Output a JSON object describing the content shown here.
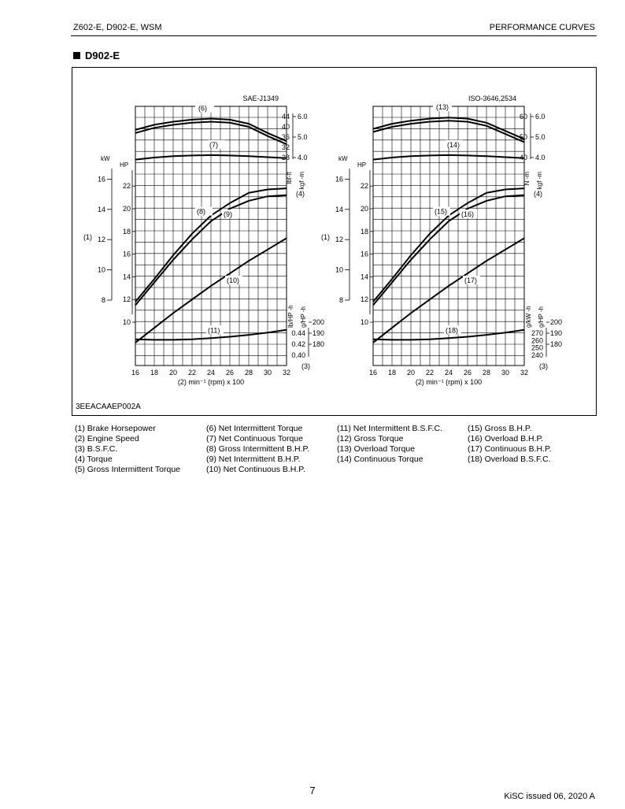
{
  "header": {
    "left": "Z602-E, D902-E, WSM",
    "right": "PERFORMANCE CURVES"
  },
  "section_title": "D902-E",
  "figure_code": "3EEACAAEP002A",
  "legend": [
    [
      "(1)  Brake Horsepower",
      "(2)  Engine Speed",
      "(3)  B.S.F.C.",
      "(4)  Torque",
      "(5)  Gross Intermittent Torque"
    ],
    [
      "(6)  Net Intermittent Torque",
      "(7)  Net Continuous Torque",
      "(8)  Gross Intermittent B.H.P.",
      "(9)  Net Intermittent B.H.P.",
      "(10) Net Continuous B.H.P."
    ],
    [
      "(11) Net Intermittent B.S.F.C.",
      "(12) Gross Torque",
      "(13) Overload Torque",
      "(14) Continuous Torque"
    ],
    [
      "(15) Gross B.H.P.",
      "(16) Overload B.H.P.",
      "(17) Continuous B.H.P.",
      "(18) Overload B.S.F.C."
    ]
  ],
  "footer": {
    "page": "7",
    "issue": "KiSC issued 06, 2020 A"
  },
  "chart_data": [
    {
      "type": "line",
      "title": "SAE-J1349",
      "xlabel": "(2)  min⁻¹ (rpm) x 100",
      "x": [
        16,
        18,
        20,
        22,
        24,
        26,
        28,
        30,
        32
      ],
      "x_ticks": [
        "16",
        "18",
        "20",
        "22",
        "24",
        "26",
        "28",
        "30",
        "32"
      ],
      "left_axis": {
        "kw_label": "kW",
        "kw_ticks": [
          "16",
          "14",
          "12",
          "10",
          "8"
        ],
        "hp_label": "HP",
        "hp_ticks": [
          "22",
          "20",
          "18",
          "16",
          "14",
          "12",
          "10"
        ],
        "group_label": "(1)"
      },
      "right_axis": {
        "torque_ticks_a": [
          "44",
          "40",
          "36",
          "32",
          "28"
        ],
        "torque_ticks_b": [
          "6.0",
          "5.0",
          "4.0"
        ],
        "torque_unit_a": "lbf-ft",
        "torque_unit_b": "kgf -m",
        "torque_label": "(4)",
        "bsfc_ticks_a": [
          "0.44",
          "0.42",
          "0.40"
        ],
        "bsfc_ticks_b": [
          "200",
          "190",
          "180"
        ],
        "bsfc_unit_a": "lb/HP -h",
        "bsfc_unit_b": "g/HP -h",
        "bsfc_label": "(3)"
      },
      "series": [
        {
          "name": "(5)",
          "axis": "torque_kgfm",
          "values": [
            5.35,
            5.6,
            5.75,
            5.85,
            5.9,
            5.85,
            5.65,
            5.2,
            4.8
          ]
        },
        {
          "name": "(6)",
          "axis": "torque_kgfm",
          "values": [
            5.2,
            5.45,
            5.6,
            5.7,
            5.75,
            5.7,
            5.5,
            5.05,
            4.65
          ]
        },
        {
          "name": "(7)",
          "axis": "torque_kgfm",
          "values": [
            3.9,
            4.0,
            4.07,
            4.1,
            4.12,
            4.1,
            4.07,
            4.02,
            3.97
          ]
        },
        {
          "name": "(8)",
          "axis": "hp",
          "values": [
            11.8,
            13.8,
            15.9,
            17.8,
            19.4,
            20.5,
            21.4,
            21.7,
            21.8
          ]
        },
        {
          "name": "(9)",
          "axis": "hp",
          "values": [
            11.5,
            13.5,
            15.5,
            17.3,
            18.9,
            20.0,
            20.7,
            21.1,
            21.2
          ]
        },
        {
          "name": "(10)",
          "axis": "hp",
          "values": [
            8.2,
            9.5,
            10.8,
            12.0,
            13.2,
            14.3,
            15.4,
            16.4,
            17.4
          ]
        },
        {
          "name": "(11)",
          "axis": "bsfc_ghph",
          "values": [
            184.5,
            184.0,
            184.0,
            184.5,
            185.5,
            186.8,
            188.5,
            190.5,
            193.0
          ]
        }
      ]
    },
    {
      "type": "line",
      "title": "ISO-3646,2534",
      "xlabel": "(2)  min⁻¹ (rpm) x 100",
      "x": [
        16,
        18,
        20,
        22,
        24,
        26,
        28,
        30,
        32
      ],
      "x_ticks": [
        "16",
        "18",
        "20",
        "22",
        "24",
        "26",
        "28",
        "30",
        "32"
      ],
      "left_axis": {
        "kw_label": "kW",
        "kw_ticks": [
          "16",
          "14",
          "12",
          "10",
          "8"
        ],
        "hp_label": "HP",
        "hp_ticks": [
          "22",
          "20",
          "18",
          "16",
          "14",
          "12",
          "10"
        ],
        "group_label": "(1)"
      },
      "right_axis": {
        "torque_ticks_a": [
          "60",
          "50",
          "40"
        ],
        "torque_ticks_b": [
          "6.0",
          "5.0",
          "4.0"
        ],
        "torque_unit_a": "N -m",
        "torque_unit_b": "kgf -m",
        "torque_label": "(4)",
        "bsfc_ticks_a": [
          "270",
          "260",
          "250",
          "240"
        ],
        "bsfc_ticks_b": [
          "200",
          "190",
          "180"
        ],
        "bsfc_unit_a": "g/kW -h",
        "bsfc_unit_b": "g/HP -h",
        "bsfc_label": "(3)"
      },
      "series": [
        {
          "name": "(12)",
          "axis": "torque_kgfm",
          "values": [
            5.4,
            5.65,
            5.8,
            5.9,
            5.95,
            5.9,
            5.7,
            5.3,
            4.9
          ]
        },
        {
          "name": "(13)",
          "axis": "torque_kgfm",
          "values": [
            5.25,
            5.5,
            5.65,
            5.75,
            5.8,
            5.75,
            5.55,
            5.15,
            4.75
          ]
        },
        {
          "name": "(14)",
          "axis": "torque_kgfm",
          "values": [
            3.9,
            4.0,
            4.07,
            4.1,
            4.12,
            4.1,
            4.07,
            4.02,
            3.97
          ]
        },
        {
          "name": "(15)",
          "axis": "hp",
          "values": [
            11.8,
            13.8,
            15.9,
            17.8,
            19.4,
            20.5,
            21.4,
            21.7,
            21.8
          ]
        },
        {
          "name": "(16)",
          "axis": "hp",
          "values": [
            11.5,
            13.5,
            15.5,
            17.3,
            18.9,
            20.0,
            20.7,
            21.1,
            21.2
          ]
        },
        {
          "name": "(17)",
          "axis": "hp",
          "values": [
            8.2,
            9.5,
            10.8,
            12.0,
            13.2,
            14.3,
            15.4,
            16.4,
            17.4
          ]
        },
        {
          "name": "(18)",
          "axis": "bsfc_ghph",
          "values": [
            184.5,
            184.0,
            184.0,
            184.5,
            185.5,
            186.8,
            188.5,
            190.5,
            193.0
          ]
        }
      ]
    }
  ]
}
